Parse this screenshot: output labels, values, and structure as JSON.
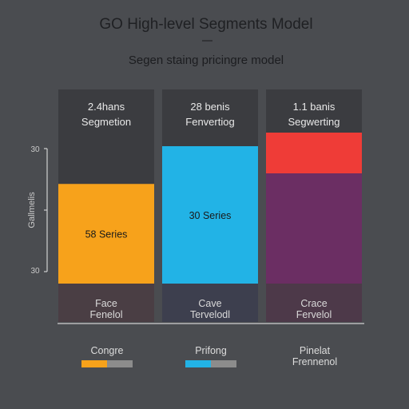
{
  "chart_data": {
    "type": "bar",
    "title": "GO High-level Segments Model",
    "subtitle": "Segen staing pricingre model",
    "ylabel": "Gallmelis",
    "y_ticks": [
      "30",
      "30"
    ],
    "ylim": [
      0,
      100
    ],
    "columns": [
      {
        "header": [
          "2.4hans",
          "Segmetion"
        ],
        "segments": [
          {
            "value": 34,
            "color": "#3b3c40",
            "label": ""
          },
          {
            "value": 66,
            "color": "#f7a21b",
            "label": "58 Series"
          }
        ],
        "footer": [
          "Face",
          "Fenelol"
        ],
        "footer_color": "#4a3e44"
      },
      {
        "header": [
          "28 benis",
          "Fenvertiog"
        ],
        "segments": [
          {
            "value": 9,
            "color": "#3b3c40",
            "label": ""
          },
          {
            "value": 91,
            "color": "#22b3e6",
            "label": "30 Series"
          }
        ],
        "footer": [
          "Cave",
          "Tervelodl"
        ],
        "footer_color": "#3d3f4e"
      },
      {
        "header": [
          "1.1 banis",
          "Segwerting"
        ],
        "segments": [
          {
            "value": 0,
            "color": "#3b3c40",
            "label": ""
          },
          {
            "value": 27,
            "color": "#ef3c37",
            "label": ""
          },
          {
            "value": 73,
            "color": "#6b2e63",
            "label": ""
          }
        ],
        "footer": [
          "Crace",
          "Fervelol"
        ],
        "footer_color": "#4d3949"
      }
    ],
    "legend": [
      {
        "label": [
          "Congre"
        ],
        "colors": [
          "#f7a21b",
          "#8c8c8c"
        ]
      },
      {
        "label": [
          "Prifong"
        ],
        "colors": [
          "#22b3e6",
          "#8c8c8c"
        ]
      },
      {
        "label": [
          "Pinelat",
          "Frennenol"
        ],
        "colors": []
      }
    ]
  }
}
